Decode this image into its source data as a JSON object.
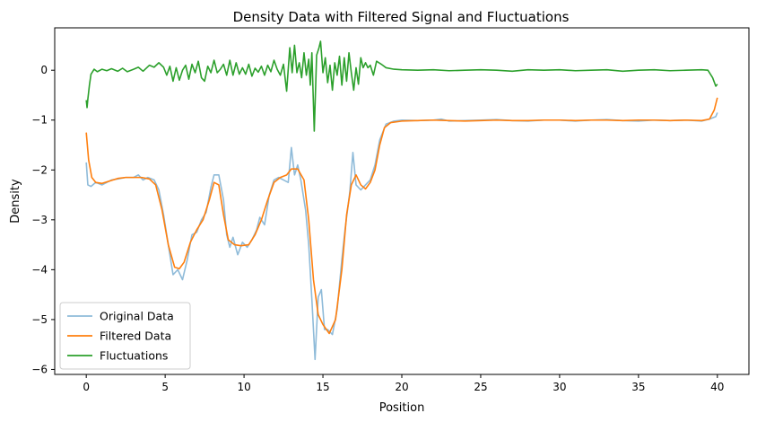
{
  "chart_data": {
    "type": "line",
    "title": "Density Data with Filtered Signal and Fluctuations",
    "xlabel": "Position",
    "ylabel": "Density",
    "xlim": [
      -2.0,
      42.0
    ],
    "ylim": [
      -6.1,
      0.85
    ],
    "xticks": [
      0,
      5,
      10,
      15,
      20,
      25,
      30,
      35,
      40
    ],
    "yticks": [
      0,
      -1,
      -2,
      -3,
      -4,
      -5,
      -6
    ],
    "grid": false,
    "legend_position": "lower-left",
    "series": [
      {
        "name": "Original Data",
        "color": "#1f77b4",
        "alpha": 0.5,
        "points": [
          [
            0,
            -1.85
          ],
          [
            0.1,
            -2.3
          ],
          [
            0.3,
            -2.33
          ],
          [
            0.6,
            -2.25
          ],
          [
            1,
            -2.3
          ],
          [
            1.3,
            -2.25
          ],
          [
            1.6,
            -2.2
          ],
          [
            2,
            -2.18
          ],
          [
            2.5,
            -2.15
          ],
          [
            3,
            -2.15
          ],
          [
            3.3,
            -2.1
          ],
          [
            3.6,
            -2.2
          ],
          [
            3.9,
            -2.15
          ],
          [
            4.3,
            -2.2
          ],
          [
            4.6,
            -2.4
          ],
          [
            4.9,
            -2.9
          ],
          [
            5.2,
            -3.5
          ],
          [
            5.5,
            -4.1
          ],
          [
            5.8,
            -4.0
          ],
          [
            6.1,
            -4.2
          ],
          [
            6.4,
            -3.8
          ],
          [
            6.7,
            -3.3
          ],
          [
            7.0,
            -3.25
          ],
          [
            7.3,
            -3.0
          ],
          [
            7.6,
            -2.85
          ],
          [
            7.9,
            -2.35
          ],
          [
            8.1,
            -2.1
          ],
          [
            8.4,
            -2.1
          ],
          [
            8.7,
            -2.6
          ],
          [
            8.9,
            -3.3
          ],
          [
            9.1,
            -3.55
          ],
          [
            9.3,
            -3.35
          ],
          [
            9.6,
            -3.7
          ],
          [
            9.9,
            -3.45
          ],
          [
            10.2,
            -3.55
          ],
          [
            10.5,
            -3.4
          ],
          [
            10.8,
            -3.2
          ],
          [
            11.0,
            -2.95
          ],
          [
            11.3,
            -3.1
          ],
          [
            11.6,
            -2.5
          ],
          [
            11.9,
            -2.2
          ],
          [
            12.2,
            -2.15
          ],
          [
            12.5,
            -2.2
          ],
          [
            12.8,
            -2.25
          ],
          [
            13.0,
            -1.55
          ],
          [
            13.2,
            -2.1
          ],
          [
            13.4,
            -1.9
          ],
          [
            13.6,
            -2.2
          ],
          [
            13.9,
            -2.8
          ],
          [
            14.1,
            -3.5
          ],
          [
            14.3,
            -4.6
          ],
          [
            14.5,
            -5.8
          ],
          [
            14.7,
            -4.55
          ],
          [
            14.9,
            -4.4
          ],
          [
            15.1,
            -5.2
          ],
          [
            15.3,
            -5.2
          ],
          [
            15.6,
            -5.3
          ],
          [
            15.9,
            -4.8
          ],
          [
            16.2,
            -3.8
          ],
          [
            16.4,
            -3.2
          ],
          [
            16.7,
            -2.45
          ],
          [
            16.9,
            -1.65
          ],
          [
            17.1,
            -2.3
          ],
          [
            17.4,
            -2.4
          ],
          [
            17.7,
            -2.3
          ],
          [
            18.0,
            -2.2
          ],
          [
            18.3,
            -1.9
          ],
          [
            18.6,
            -1.4
          ],
          [
            19.0,
            -1.08
          ],
          [
            19.5,
            -1.02
          ],
          [
            20,
            -1.0
          ],
          [
            21,
            -1.01
          ],
          [
            22,
            -1.0
          ],
          [
            22.5,
            -0.98
          ],
          [
            23,
            -1.02
          ],
          [
            24,
            -1.01
          ],
          [
            25,
            -1.0
          ],
          [
            26,
            -0.99
          ],
          [
            27,
            -1.01
          ],
          [
            28,
            -1.02
          ],
          [
            29,
            -1.0
          ],
          [
            30,
            -1.0
          ],
          [
            31,
            -1.02
          ],
          [
            32,
            -1.0
          ],
          [
            33,
            -0.99
          ],
          [
            34,
            -1.01
          ],
          [
            35,
            -1.02
          ],
          [
            36,
            -1.0
          ],
          [
            37,
            -1.01
          ],
          [
            38,
            -1.0
          ],
          [
            39,
            -1.02
          ],
          [
            39.5,
            -0.98
          ],
          [
            39.9,
            -0.93
          ],
          [
            40,
            -0.85
          ]
        ]
      },
      {
        "name": "Filtered Data",
        "color": "#ff7f0e",
        "alpha": 1,
        "points": [
          [
            0,
            -1.25
          ],
          [
            0.15,
            -1.8
          ],
          [
            0.35,
            -2.15
          ],
          [
            0.6,
            -2.25
          ],
          [
            1,
            -2.27
          ],
          [
            1.5,
            -2.22
          ],
          [
            2,
            -2.17
          ],
          [
            2.5,
            -2.15
          ],
          [
            3,
            -2.15
          ],
          [
            3.5,
            -2.15
          ],
          [
            4,
            -2.18
          ],
          [
            4.4,
            -2.3
          ],
          [
            4.8,
            -2.8
          ],
          [
            5.2,
            -3.5
          ],
          [
            5.6,
            -3.95
          ],
          [
            5.9,
            -3.98
          ],
          [
            6.2,
            -3.85
          ],
          [
            6.6,
            -3.45
          ],
          [
            7.0,
            -3.2
          ],
          [
            7.4,
            -3.0
          ],
          [
            7.8,
            -2.6
          ],
          [
            8.1,
            -2.25
          ],
          [
            8.4,
            -2.3
          ],
          [
            8.7,
            -2.9
          ],
          [
            9.0,
            -3.4
          ],
          [
            9.4,
            -3.5
          ],
          [
            9.8,
            -3.52
          ],
          [
            10.3,
            -3.5
          ],
          [
            10.7,
            -3.3
          ],
          [
            11.1,
            -3.0
          ],
          [
            11.5,
            -2.6
          ],
          [
            11.9,
            -2.25
          ],
          [
            12.3,
            -2.15
          ],
          [
            12.7,
            -2.1
          ],
          [
            13.0,
            -1.98
          ],
          [
            13.4,
            -1.98
          ],
          [
            13.8,
            -2.2
          ],
          [
            14.1,
            -3.0
          ],
          [
            14.4,
            -4.2
          ],
          [
            14.7,
            -4.9
          ],
          [
            15.0,
            -5.1
          ],
          [
            15.4,
            -5.28
          ],
          [
            15.8,
            -5.0
          ],
          [
            16.2,
            -4.0
          ],
          [
            16.5,
            -2.9
          ],
          [
            16.8,
            -2.3
          ],
          [
            17.1,
            -2.1
          ],
          [
            17.4,
            -2.3
          ],
          [
            17.7,
            -2.38
          ],
          [
            18.0,
            -2.25
          ],
          [
            18.3,
            -2.0
          ],
          [
            18.6,
            -1.5
          ],
          [
            18.9,
            -1.15
          ],
          [
            19.3,
            -1.05
          ],
          [
            20,
            -1.02
          ],
          [
            21,
            -1.01
          ],
          [
            22,
            -1.0
          ],
          [
            23,
            -1.01
          ],
          [
            24,
            -1.02
          ],
          [
            25,
            -1.01
          ],
          [
            26,
            -1.0
          ],
          [
            27,
            -1.01
          ],
          [
            28,
            -1.01
          ],
          [
            29,
            -1.0
          ],
          [
            30,
            -1.0
          ],
          [
            31,
            -1.01
          ],
          [
            32,
            -1.0
          ],
          [
            33,
            -1.0
          ],
          [
            34,
            -1.01
          ],
          [
            35,
            -1.0
          ],
          [
            36,
            -1.0
          ],
          [
            37,
            -1.01
          ],
          [
            38,
            -1.0
          ],
          [
            39,
            -1.01
          ],
          [
            39.5,
            -0.98
          ],
          [
            39.8,
            -0.8
          ],
          [
            40,
            -0.55
          ]
        ]
      },
      {
        "name": "Fluctuations",
        "color": "#2ca02c",
        "alpha": 1,
        "points": [
          [
            0,
            -0.6
          ],
          [
            0.05,
            -0.75
          ],
          [
            0.1,
            -0.58
          ],
          [
            0.2,
            -0.3
          ],
          [
            0.3,
            -0.08
          ],
          [
            0.5,
            0.02
          ],
          [
            0.7,
            -0.03
          ],
          [
            1,
            0.02
          ],
          [
            1.3,
            -0.01
          ],
          [
            1.6,
            0.03
          ],
          [
            2,
            -0.02
          ],
          [
            2.3,
            0.04
          ],
          [
            2.6,
            -0.03
          ],
          [
            3,
            0.02
          ],
          [
            3.3,
            0.06
          ],
          [
            3.6,
            -0.02
          ],
          [
            4,
            0.1
          ],
          [
            4.3,
            0.06
          ],
          [
            4.6,
            0.15
          ],
          [
            4.9,
            0.06
          ],
          [
            5.1,
            -0.1
          ],
          [
            5.3,
            0.08
          ],
          [
            5.5,
            -0.22
          ],
          [
            5.7,
            0.05
          ],
          [
            5.9,
            -0.2
          ],
          [
            6.1,
            0.0
          ],
          [
            6.3,
            0.1
          ],
          [
            6.5,
            -0.18
          ],
          [
            6.7,
            0.12
          ],
          [
            6.9,
            -0.05
          ],
          [
            7.1,
            0.18
          ],
          [
            7.3,
            -0.15
          ],
          [
            7.5,
            -0.22
          ],
          [
            7.7,
            0.08
          ],
          [
            7.9,
            -0.05
          ],
          [
            8.1,
            0.2
          ],
          [
            8.3,
            -0.05
          ],
          [
            8.5,
            0.02
          ],
          [
            8.7,
            0.12
          ],
          [
            8.9,
            -0.1
          ],
          [
            9.1,
            0.2
          ],
          [
            9.3,
            -0.1
          ],
          [
            9.5,
            0.15
          ],
          [
            9.7,
            -0.08
          ],
          [
            9.9,
            0.05
          ],
          [
            10.1,
            -0.08
          ],
          [
            10.3,
            0.12
          ],
          [
            10.5,
            -0.12
          ],
          [
            10.7,
            0.04
          ],
          [
            10.9,
            -0.04
          ],
          [
            11.1,
            0.08
          ],
          [
            11.3,
            -0.1
          ],
          [
            11.5,
            0.1
          ],
          [
            11.7,
            -0.03
          ],
          [
            11.9,
            0.2
          ],
          [
            12.1,
            0.02
          ],
          [
            12.3,
            -0.1
          ],
          [
            12.5,
            0.12
          ],
          [
            12.7,
            -0.42
          ],
          [
            12.9,
            0.45
          ],
          [
            13.05,
            -0.05
          ],
          [
            13.2,
            0.5
          ],
          [
            13.35,
            -0.05
          ],
          [
            13.5,
            0.15
          ],
          [
            13.65,
            -0.15
          ],
          [
            13.8,
            0.35
          ],
          [
            13.95,
            -0.1
          ],
          [
            14.1,
            0.22
          ],
          [
            14.2,
            -0.3
          ],
          [
            14.3,
            0.35
          ],
          [
            14.45,
            -1.22
          ],
          [
            14.6,
            0.3
          ],
          [
            14.75,
            0.45
          ],
          [
            14.85,
            0.58
          ],
          [
            15.0,
            -0.05
          ],
          [
            15.15,
            0.25
          ],
          [
            15.3,
            -0.25
          ],
          [
            15.45,
            0.1
          ],
          [
            15.6,
            -0.4
          ],
          [
            15.75,
            0.15
          ],
          [
            15.9,
            -0.1
          ],
          [
            16.05,
            0.28
          ],
          [
            16.2,
            -0.3
          ],
          [
            16.35,
            0.25
          ],
          [
            16.5,
            -0.22
          ],
          [
            16.65,
            0.35
          ],
          [
            16.8,
            -0.05
          ],
          [
            16.95,
            -0.4
          ],
          [
            17.1,
            0.05
          ],
          [
            17.25,
            -0.28
          ],
          [
            17.4,
            0.25
          ],
          [
            17.55,
            0.05
          ],
          [
            17.7,
            0.15
          ],
          [
            17.85,
            0.05
          ],
          [
            18.0,
            0.1
          ],
          [
            18.2,
            -0.1
          ],
          [
            18.4,
            0.18
          ],
          [
            18.7,
            0.12
          ],
          [
            19,
            0.05
          ],
          [
            19.5,
            0.02
          ],
          [
            20,
            0.01
          ],
          [
            21,
            0.0
          ],
          [
            22,
            0.01
          ],
          [
            23,
            -0.01
          ],
          [
            24,
            0.0
          ],
          [
            25,
            0.01
          ],
          [
            26,
            0.0
          ],
          [
            27,
            -0.02
          ],
          [
            28,
            0.01
          ],
          [
            29,
            0.0
          ],
          [
            30,
            0.01
          ],
          [
            31,
            -0.01
          ],
          [
            32,
            0.0
          ],
          [
            33,
            0.01
          ],
          [
            34,
            -0.02
          ],
          [
            35,
            0.0
          ],
          [
            36,
            0.01
          ],
          [
            37,
            -0.01
          ],
          [
            38,
            0.0
          ],
          [
            39,
            0.01
          ],
          [
            39.4,
            0.0
          ],
          [
            39.7,
            -0.15
          ],
          [
            39.9,
            -0.32
          ],
          [
            40,
            -0.28
          ]
        ]
      }
    ]
  }
}
